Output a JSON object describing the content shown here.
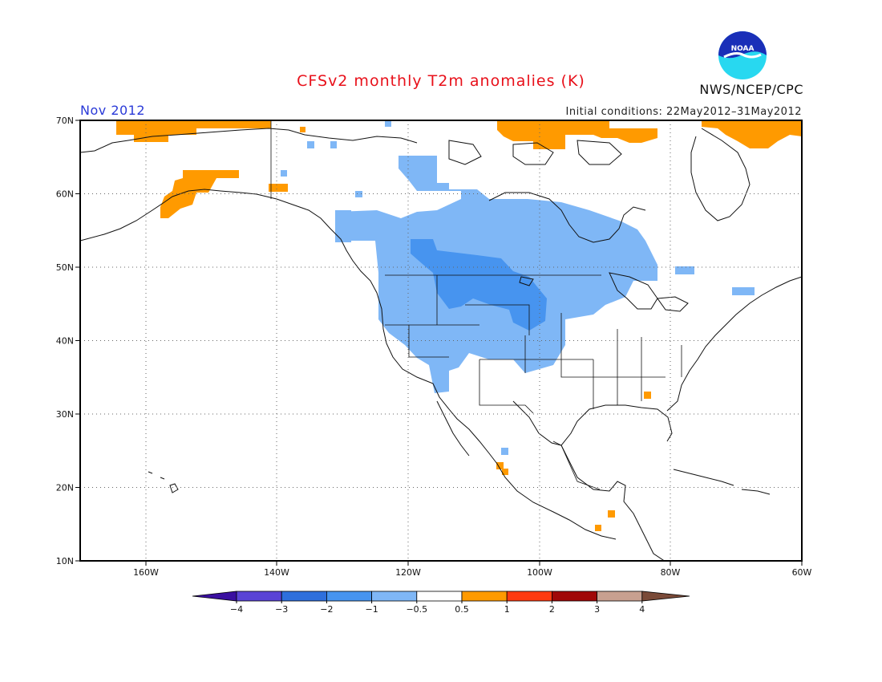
{
  "title": "CFSv2 monthly T2m anomalies (K)",
  "period": "Nov 2012",
  "initial_conditions": "Initial conditions: 22May2012–31May2012",
  "agency": "NWS/NCEP/CPC",
  "logo_text": "NOAA",
  "map": {
    "lat_range": [
      10,
      70
    ],
    "lon_range": [
      -170,
      -60
    ],
    "lat_labels": [
      "70N",
      "60N",
      "50N",
      "40N",
      "30N",
      "20N",
      "10N"
    ],
    "lon_labels": [
      "160W",
      "140W",
      "120W",
      "100W",
      "80W",
      "60W"
    ],
    "grid_style": "dotted"
  },
  "colorbar": {
    "labels": [
      "−4",
      "−3",
      "−2",
      "−1",
      "−0.5",
      "0.5",
      "1",
      "2",
      "3",
      "4"
    ],
    "colors": [
      "#3a0fa0",
      "#5a44d6",
      "#2e6fdc",
      "#4794ef",
      "#7fb7f6",
      "#ffffff",
      "#ff9a00",
      "#ff3a10",
      "#a00808",
      "#c8a090",
      "#7a4a38"
    ]
  },
  "anomaly_regions": [
    {
      "category": "-1",
      "color": "#7fb7f6",
      "description": "western and central North America cold anomaly"
    },
    {
      "category": "-2",
      "color": "#4794ef",
      "description": "northern Plains and Montana"
    },
    {
      "category": "0.5",
      "color": "#ff9a00",
      "description": "Alaska, Arctic coast, Greenland"
    }
  ]
}
